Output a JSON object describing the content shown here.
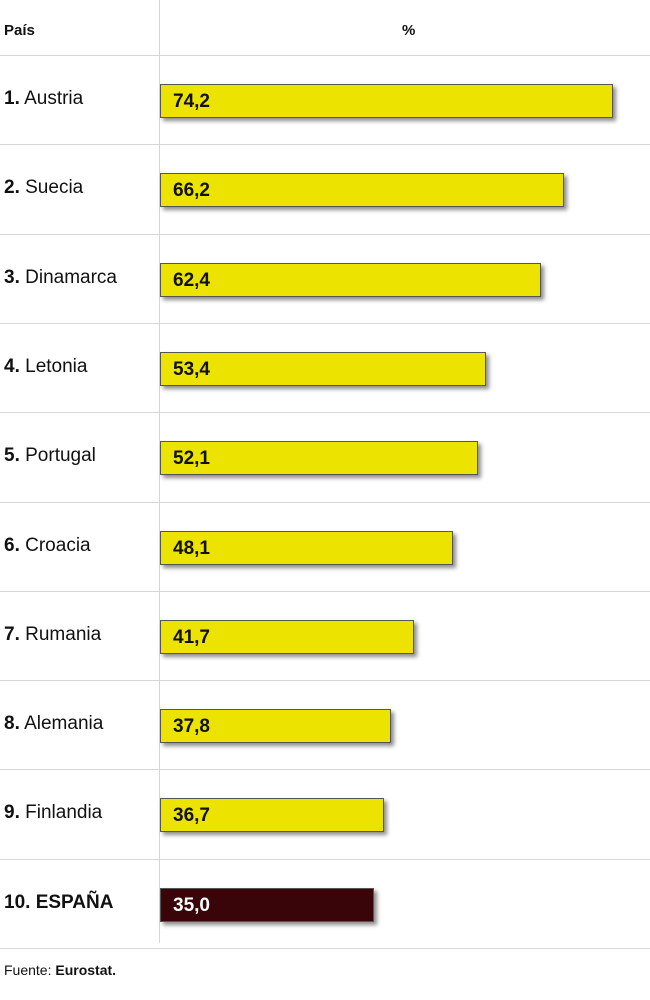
{
  "header": {
    "country_label": "País",
    "unit_label": "%"
  },
  "colors": {
    "bar": "#ece400",
    "highlight_bar": "#3a0508",
    "bar_text": "#111111",
    "highlight_text": "#ffffff"
  },
  "chart_data": {
    "type": "bar",
    "orientation": "horizontal",
    "rows": [
      {
        "rank": "1.",
        "name": "Austria",
        "value": 74.2,
        "value_label": "74,2"
      },
      {
        "rank": "2.",
        "name": "Suecia",
        "value": 66.2,
        "value_label": "66,2"
      },
      {
        "rank": "3.",
        "name": "Dinamarca",
        "value": 62.4,
        "value_label": "62,4"
      },
      {
        "rank": "4.",
        "name": "Letonia",
        "value": 53.4,
        "value_label": "53,4"
      },
      {
        "rank": "5.",
        "name": "Portugal",
        "value": 52.1,
        "value_label": "52,1"
      },
      {
        "rank": "6.",
        "name": "Croacia",
        "value": 48.1,
        "value_label": "48,1"
      },
      {
        "rank": "7.",
        "name": "Rumania",
        "value": 41.7,
        "value_label": "41,7"
      },
      {
        "rank": "8.",
        "name": "Alemania",
        "value": 37.8,
        "value_label": "37,8"
      },
      {
        "rank": "9.",
        "name": "Finlandia",
        "value": 36.7,
        "value_label": "36,7"
      },
      {
        "rank": "10.",
        "name": "ESPAÑA",
        "value": 35.0,
        "value_label": "35,0",
        "highlight": true
      }
    ]
  },
  "footer": {
    "source_prefix": "Fuente:",
    "source_name": "Eurostat."
  }
}
